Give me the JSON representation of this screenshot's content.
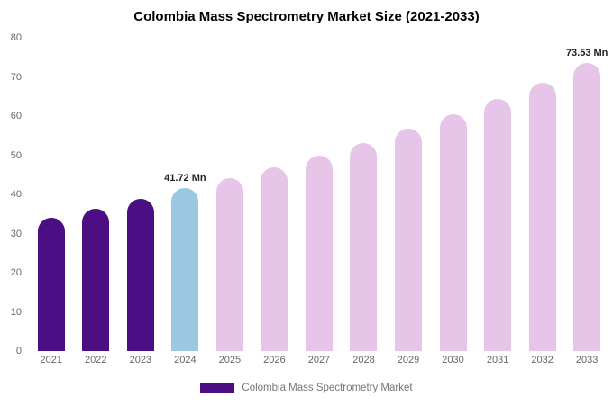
{
  "title": "Colombia Mass Spectrometry Market Size (2021-2033)",
  "legend": {
    "label": "Colombia Mass Spectrometry Market",
    "swatch_color": "#4B0E83"
  },
  "chart_data": {
    "type": "bar",
    "title": "Colombia Mass Spectrometry Market Size (2021-2033)",
    "xlabel": "",
    "ylabel": "",
    "ylim": [
      0,
      80
    ],
    "yticks": [
      0,
      10,
      20,
      30,
      40,
      50,
      60,
      70,
      80
    ],
    "grid": false,
    "legend_position": "bottom",
    "categories": [
      "2021",
      "2022",
      "2023",
      "2024",
      "2025",
      "2026",
      "2027",
      "2028",
      "2029",
      "2030",
      "2031",
      "2032",
      "2033"
    ],
    "values": [
      34.1,
      36.3,
      38.9,
      41.72,
      44.2,
      46.8,
      50.0,
      53.2,
      56.7,
      60.4,
      64.3,
      68.6,
      73.53
    ],
    "bar_colors": [
      "#4B0E83",
      "#4B0E83",
      "#4B0E83",
      "#9CC7E2",
      "#E7C5E9",
      "#E7C5E9",
      "#E7C5E9",
      "#E7C5E9",
      "#E7C5E9",
      "#E7C5E9",
      "#E7C5E9",
      "#E7C5E9",
      "#E7C5E9"
    ],
    "annotations": [
      {
        "category": "2024",
        "text": "41.72 Mn"
      },
      {
        "category": "2033",
        "text": "73.53 Mn"
      }
    ]
  }
}
